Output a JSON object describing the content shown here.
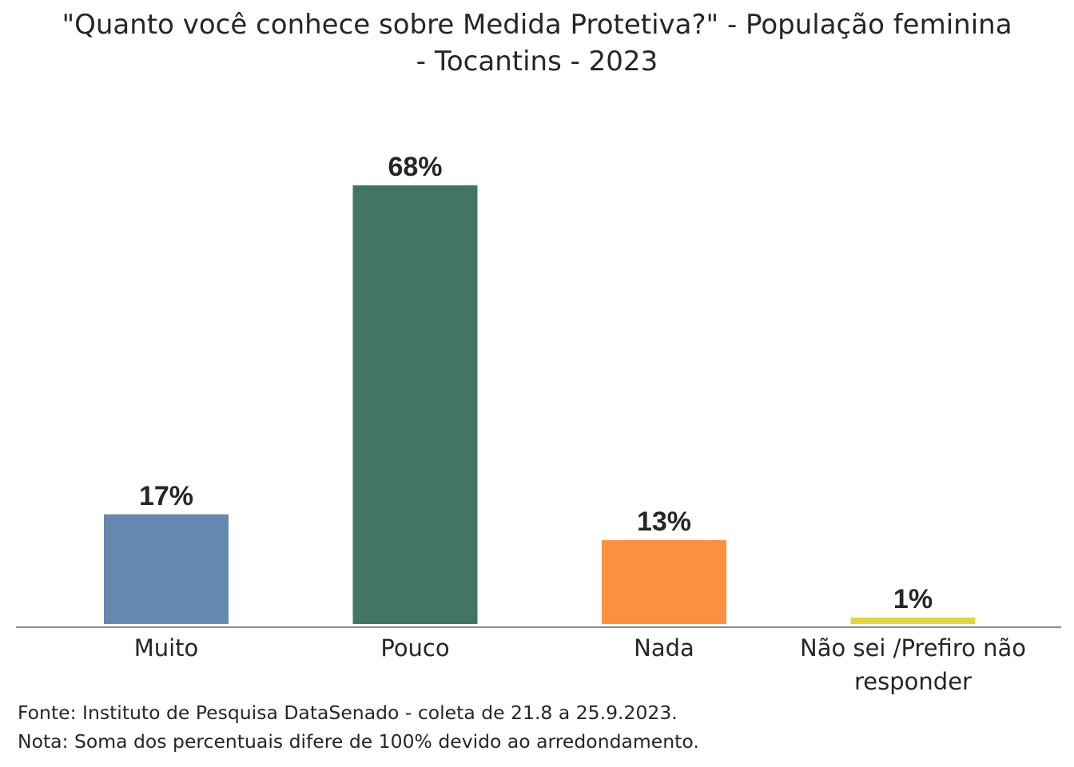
{
  "chart_data": {
    "type": "bar",
    "title": "\"Quanto você conhece sobre Medida Protetiva?\" - População feminina - Tocantins - 2023",
    "categories": [
      "Muito",
      "Pouco",
      "Nada",
      "Não sei /Prefiro não responder"
    ],
    "values": [
      17,
      68,
      13,
      1
    ],
    "data_labels": [
      "17%",
      "68%",
      "13%",
      "1%"
    ],
    "colors": [
      "#6688b0",
      "#437563",
      "#fb9140",
      "#e2d63c"
    ],
    "xlabel": "",
    "ylabel": "",
    "ylim": [
      0,
      68
    ],
    "grid": false,
    "legend": "none"
  },
  "footer": {
    "source": "Fonte: Instituto de Pesquisa DataSenado - coleta de 21.8 a 25.9.2023.",
    "note": "Nota: Soma dos percentuais difere de 100% devido ao arredondamento."
  }
}
